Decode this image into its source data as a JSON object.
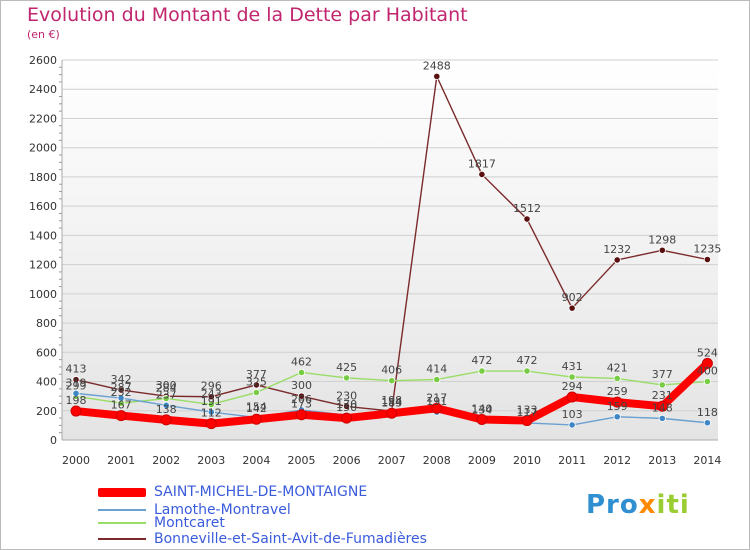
{
  "chart_data": {
    "type": "line",
    "title": "Evolution du Montant de la Dette par Habitant",
    "subtitle": "(en €)",
    "xlabel": "",
    "ylabel": "",
    "ylim": [
      0,
      2600
    ],
    "yticks": [
      0,
      200,
      400,
      600,
      800,
      1000,
      1200,
      1400,
      1600,
      1800,
      2000,
      2200,
      2400,
      2600
    ],
    "categories": [
      "2000",
      "2001",
      "2002",
      "2003",
      "2004",
      "2005",
      "2006",
      "2007",
      "2008",
      "2009",
      "2010",
      "2011",
      "2012",
      "2013",
      "2014"
    ],
    "series": [
      {
        "name": "SAINT-MICHEL-DE-MONTAIGNE",
        "color": "#ff0000",
        "point_color": "#ff0000",
        "values": [
          198,
          167,
          138,
          112,
          142,
          173,
          150,
          183,
          217,
          140,
          133,
          294,
          259,
          231,
          524
        ]
      },
      {
        "name": "Lamothe-Montravel",
        "color": "#6aa0d2",
        "point_color": "#3d87c7",
        "values": [
          319,
          287,
          237,
          191,
          154,
          206,
          170,
          184,
          191,
          134,
          117,
          103,
          159,
          148,
          118
        ]
      },
      {
        "name": "Montcaret",
        "color": "#99dd66",
        "point_color": "#77cc44",
        "values": [
          299,
          252,
          284,
          243,
          325,
          462,
          425,
          406,
          414,
          472,
          472,
          431,
          421,
          377,
          400
        ]
      },
      {
        "name": "Bonneville-et-Saint-Avit-de-Fumadières",
        "color": "#7a2a2a",
        "point_color": "#5a1010",
        "values": [
          413,
          342,
          300,
          296,
          377,
          300,
          230,
          198,
          2488,
          1817,
          1512,
          902,
          1232,
          1298,
          1235
        ]
      }
    ],
    "labels": {
      "SAINT-MICHEL-DE-MONTAIGNE": [
        "198",
        "167",
        "138",
        "112",
        "142",
        "173",
        "150",
        "183",
        "217",
        "140",
        "133",
        "294",
        "259",
        "231",
        "524"
      ],
      "Lamothe-Montravel": [
        "319",
        "287",
        "237",
        "191",
        "154",
        "206",
        "170",
        "184",
        "191",
        "134",
        "117",
        "103",
        "159",
        "148",
        "118"
      ],
      "Montcaret": [
        "299",
        "252",
        "284",
        "243",
        "325",
        "462",
        "425",
        "406",
        "414",
        "472",
        "472",
        "431",
        "421",
        "377",
        "400"
      ],
      "Bonneville-et-Saint-Avit-de-Fumadières": [
        "413",
        "342",
        "300",
        "296",
        "377",
        "300",
        "230",
        "198",
        "2488",
        "1817",
        "1512",
        "902",
        "1232",
        "1298",
        "1235"
      ]
    },
    "legend_position": "bottom-left"
  },
  "logo": {
    "text_a": "Pro",
    "text_b": "x",
    "text_c": "iti",
    "color_a": "#2f8fd0",
    "color_b": "#ff8a00",
    "color_c": "#9acd32"
  }
}
